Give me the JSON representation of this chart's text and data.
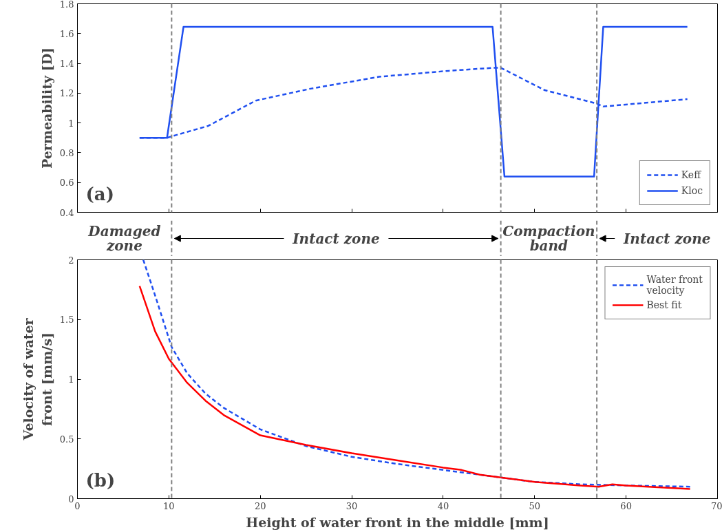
{
  "chart_data": [
    {
      "type": "line",
      "ylabel": "Permeability [D]",
      "xlim": [
        0,
        70
      ],
      "xticks": [
        0,
        10,
        20,
        30,
        40,
        50,
        60,
        70
      ],
      "ylim": [
        0.4,
        1.8
      ],
      "yticks": [
        0.4,
        0.6,
        0.8,
        1,
        1.2,
        1.4,
        1.6,
        1.8
      ],
      "tick_labels": "y",
      "legend": "bottom right",
      "grid": false,
      "annotations": [
        "(a)"
      ],
      "ref_lines": [
        {
          "axis": "x",
          "value": 10.3,
          "color": "#808080",
          "line_style": "dashed"
        },
        {
          "axis": "x",
          "value": 46.3,
          "color": "#808080",
          "line_style": "dashed"
        },
        {
          "axis": "x",
          "value": 56.8,
          "color": "#808080",
          "line_style": "dashed"
        }
      ],
      "series": [
        {
          "name": "Keff",
          "color": "#1f4ff0",
          "line_style": "dashed",
          "x": [
            6.8,
            9.8,
            10.3,
            14.3,
            19.5,
            25.5,
            33,
            40.6,
            45.4,
            46.3,
            51.1,
            56.8,
            57.5,
            66.7
          ],
          "values": [
            0.9,
            0.9,
            0.91,
            0.98,
            1.15,
            1.23,
            1.31,
            1.35,
            1.37,
            1.37,
            1.22,
            1.13,
            1.11,
            1.16
          ]
        },
        {
          "name": "Kloc",
          "color": "#1f4ff0",
          "line_style": "solid",
          "x": [
            6.8,
            9.8,
            11.6,
            45.4,
            46.7,
            56.5,
            57.5,
            66.7
          ],
          "values": [
            0.9,
            0.9,
            1.645,
            1.645,
            0.64,
            0.64,
            1.645,
            1.645
          ]
        }
      ]
    },
    {
      "type": "line",
      "xlabel": "Height of water front in the middle [mm]",
      "ylabel": "Velocity of water\nfront [mm/s]",
      "xlim": [
        0,
        70
      ],
      "xticks": [
        0,
        10,
        20,
        30,
        40,
        50,
        60,
        70
      ],
      "ylim": [
        0,
        2
      ],
      "yticks": [
        0,
        0.5,
        1,
        1.5,
        2
      ],
      "legend": "top right",
      "grid": false,
      "annotations": [
        "(b)",
        "Damaged\nzone",
        "Intact zone",
        "Compaction\nband",
        "Intact zone"
      ],
      "ref_lines": [
        {
          "axis": "x",
          "value": 10.3,
          "color": "#808080",
          "line_style": "dashed"
        },
        {
          "axis": "x",
          "value": 46.3,
          "color": "#808080",
          "line_style": "dashed"
        },
        {
          "axis": "x",
          "value": 56.8,
          "color": "#808080",
          "line_style": "dashed"
        }
      ],
      "series": [
        {
          "name": "Water front\nvelocity",
          "color": "#1f4ff0",
          "line_style": "dashed",
          "x": [
            7.2,
            8.5,
            10.3,
            12,
            14,
            16,
            20,
            25,
            30,
            35,
            40,
            45,
            50,
            55,
            60,
            67
          ],
          "values": [
            2.0,
            1.7,
            1.27,
            1.05,
            0.88,
            0.76,
            0.58,
            0.44,
            0.35,
            0.29,
            0.24,
            0.19,
            0.14,
            0.12,
            0.11,
            0.1
          ]
        },
        {
          "name": "Best fit",
          "color": "#ff0000",
          "line_style": "solid",
          "x": [
            6.8,
            8.5,
            10,
            12,
            14,
            16,
            20,
            25,
            30,
            35,
            40,
            42,
            44,
            47,
            50,
            55,
            57,
            58.5,
            60,
            67
          ],
          "values": [
            1.78,
            1.4,
            1.17,
            0.97,
            0.82,
            0.7,
            0.53,
            0.45,
            0.38,
            0.32,
            0.26,
            0.24,
            0.2,
            0.17,
            0.14,
            0.11,
            0.1,
            0.12,
            0.11,
            0.08
          ]
        }
      ]
    }
  ]
}
